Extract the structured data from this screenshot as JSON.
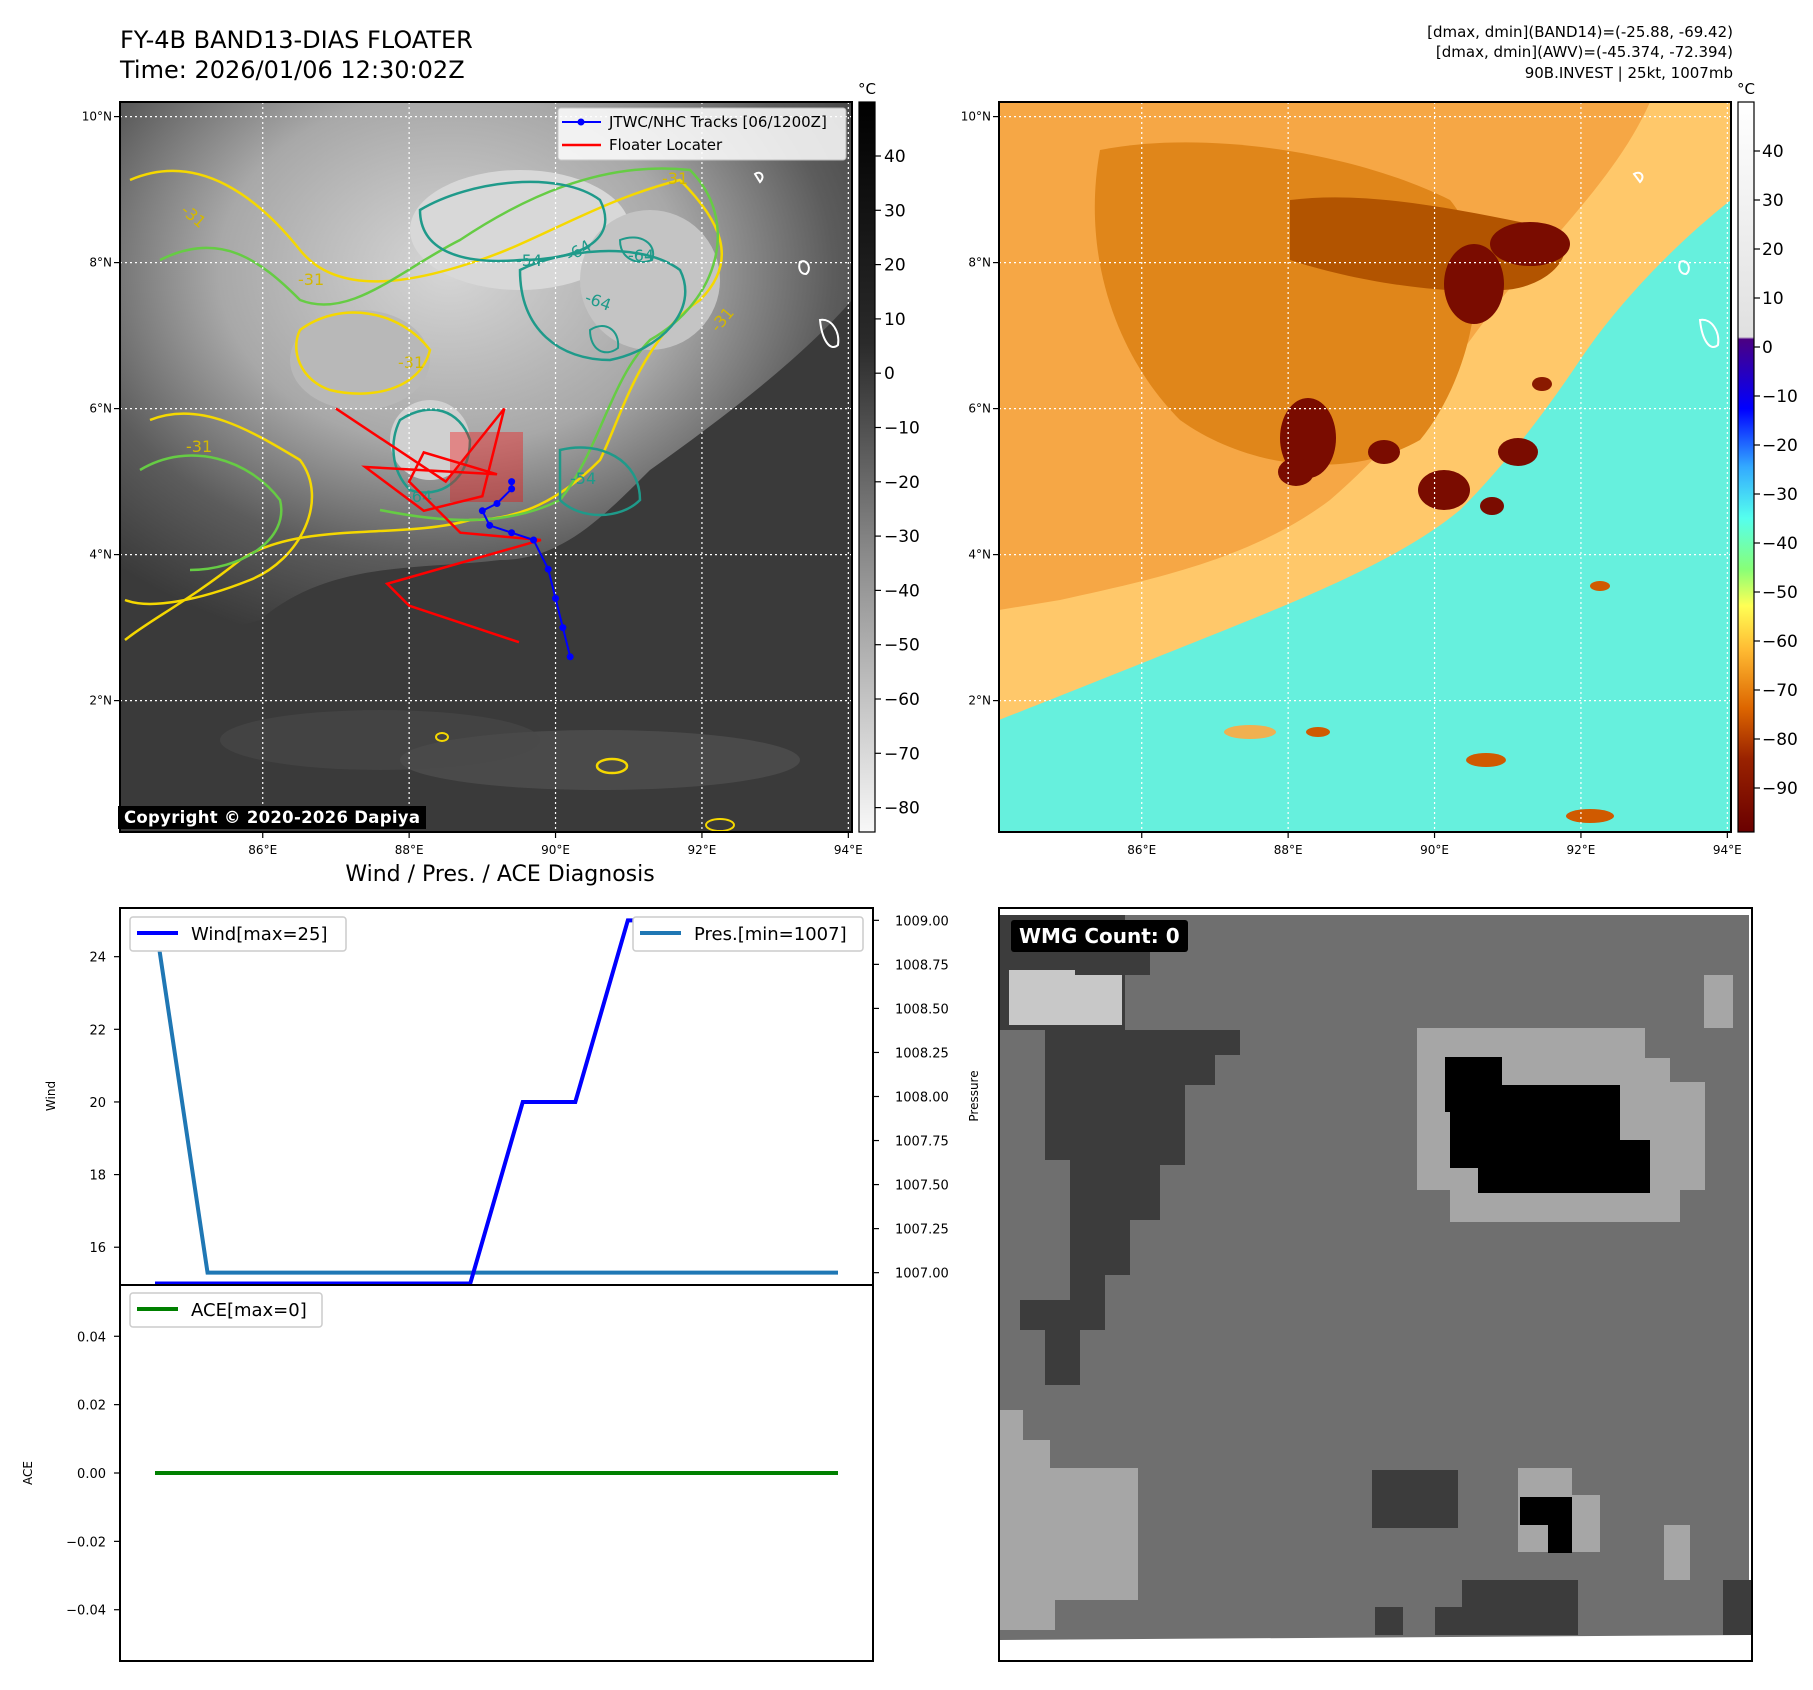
{
  "header": {
    "title_line1": "FY-4B BAND13-DIAS FLOATER",
    "title_line2": "Time: 2026/01/06 12:30:02Z",
    "info_line1": "[dmax, dmin](BAND14)=(-25.88, -69.42)",
    "info_line2": "[dmax, dmin](AWV)=(-45.374, -72.394)",
    "info_line3": "90B.INVEST | 25kt, 1007mb"
  },
  "copyright": "Copyright © 2020-2026 Dapiya",
  "maps": {
    "lon_ticks": [
      "86°E",
      "88°E",
      "90°E",
      "92°E",
      "94°E"
    ],
    "lat_ticks": [
      "10°N",
      "8°N",
      "6°N",
      "4°N",
      "2°N"
    ],
    "contour_labels": [
      "-31",
      "-54",
      "-64"
    ]
  },
  "ir_colorbar": {
    "unit": "°C",
    "ticks": [
      "40",
      "30",
      "20",
      "10",
      "0",
      "−10",
      "−20",
      "−30",
      "−40",
      "−50",
      "−60",
      "−70",
      "−80"
    ]
  },
  "color_colorbar": {
    "unit": "°C",
    "ticks": [
      "40",
      "30",
      "20",
      "10",
      "0",
      "−10",
      "−20",
      "−30",
      "−40",
      "−50",
      "−60",
      "−70",
      "−80",
      "−90"
    ]
  },
  "legend": {
    "tracks": "JTWC/NHC Tracks [06/1200Z]",
    "floater": "Floater Locater",
    "wind": "Wind[max=25]",
    "pressure": "Pres.[min=1007]",
    "ace": "ACE[max=0]"
  },
  "wmg": {
    "label": "WMG Count: 0"
  },
  "colors": {
    "track": "#0000ff",
    "floater": "#ff0000",
    "wind_line": "#0000ff",
    "pressure_line": "#1f77b4",
    "ace_line": "#008000",
    "contour_minus31_yellow": "#f5d800",
    "contour_green": "#66cc44",
    "contour_teal": "#1f9a8a"
  },
  "chart_data": [
    {
      "type": "line",
      "title": "Wind / Pres. / ACE Diagnosis",
      "ylabel": "Wind",
      "ylabel_right": "Pressure",
      "ylim": [
        14.96,
        25.34
      ],
      "ylim_right": [
        1006.93,
        1009.07
      ],
      "yticks": [
        "16",
        "18",
        "20",
        "22",
        "24"
      ],
      "yticks_right": [
        "1007.00",
        "1007.25",
        "1007.50",
        "1007.75",
        "1008.00",
        "1008.25",
        "1008.50",
        "1008.75",
        "1009.00"
      ],
      "series": [
        {
          "name": "Wind[max=25]",
          "axis": "left",
          "values": [
            15,
            15,
            15,
            15,
            15,
            15,
            15,
            20,
            20,
            25,
            25,
            25,
            25,
            25
          ]
        },
        {
          "name": "Pres.[min=1007]",
          "axis": "right",
          "values": [
            1009,
            1007,
            1007,
            1007,
            1007,
            1007,
            1007,
            1007,
            1007,
            1007,
            1007,
            1007,
            1007,
            1007
          ]
        }
      ]
    },
    {
      "type": "line",
      "ylabel": "ACE",
      "ylim": [
        -0.055,
        0.055
      ],
      "yticks": [
        "0.04",
        "0.02",
        "0.00",
        "−0.02",
        "−0.04"
      ],
      "series": [
        {
          "name": "ACE[max=0]",
          "values": [
            0,
            0,
            0,
            0,
            0,
            0,
            0,
            0,
            0,
            0,
            0,
            0,
            0,
            0
          ]
        }
      ]
    },
    {
      "type": "line",
      "title": "JTWC/NHC Tracks [06/1200Z]",
      "x_unit": "lon",
      "y_unit": "lat",
      "xlim": [
        84.05,
        94.05
      ],
      "ylim": [
        0.2,
        10.2
      ],
      "series": [
        {
          "name": "JTWC/NHC Tracks [06/1200Z]",
          "points": [
            [
              90.2,
              2.6
            ],
            [
              90.1,
              3.0
            ],
            [
              90.0,
              3.4
            ],
            [
              89.9,
              3.8
            ],
            [
              89.7,
              4.2
            ],
            [
              89.4,
              4.3
            ],
            [
              89.1,
              4.4
            ],
            [
              89.0,
              4.6
            ],
            [
              89.2,
              4.7
            ],
            [
              89.4,
              4.9
            ],
            [
              89.4,
              5.0
            ]
          ]
        },
        {
          "name": "Floater Locater",
          "points": [
            [
              87.0,
              6.0
            ],
            [
              88.5,
              5.0
            ],
            [
              89.3,
              6.0
            ],
            [
              89.0,
              4.8
            ],
            [
              88.2,
              4.6
            ],
            [
              87.4,
              5.2
            ],
            [
              89.2,
              5.1
            ],
            [
              88.2,
              5.4
            ],
            [
              88.0,
              5.0
            ],
            [
              88.7,
              4.3
            ],
            [
              89.8,
              4.2
            ],
            [
              87.7,
              3.6
            ],
            [
              88.0,
              3.3
            ],
            [
              89.5,
              2.8
            ]
          ]
        }
      ]
    }
  ]
}
